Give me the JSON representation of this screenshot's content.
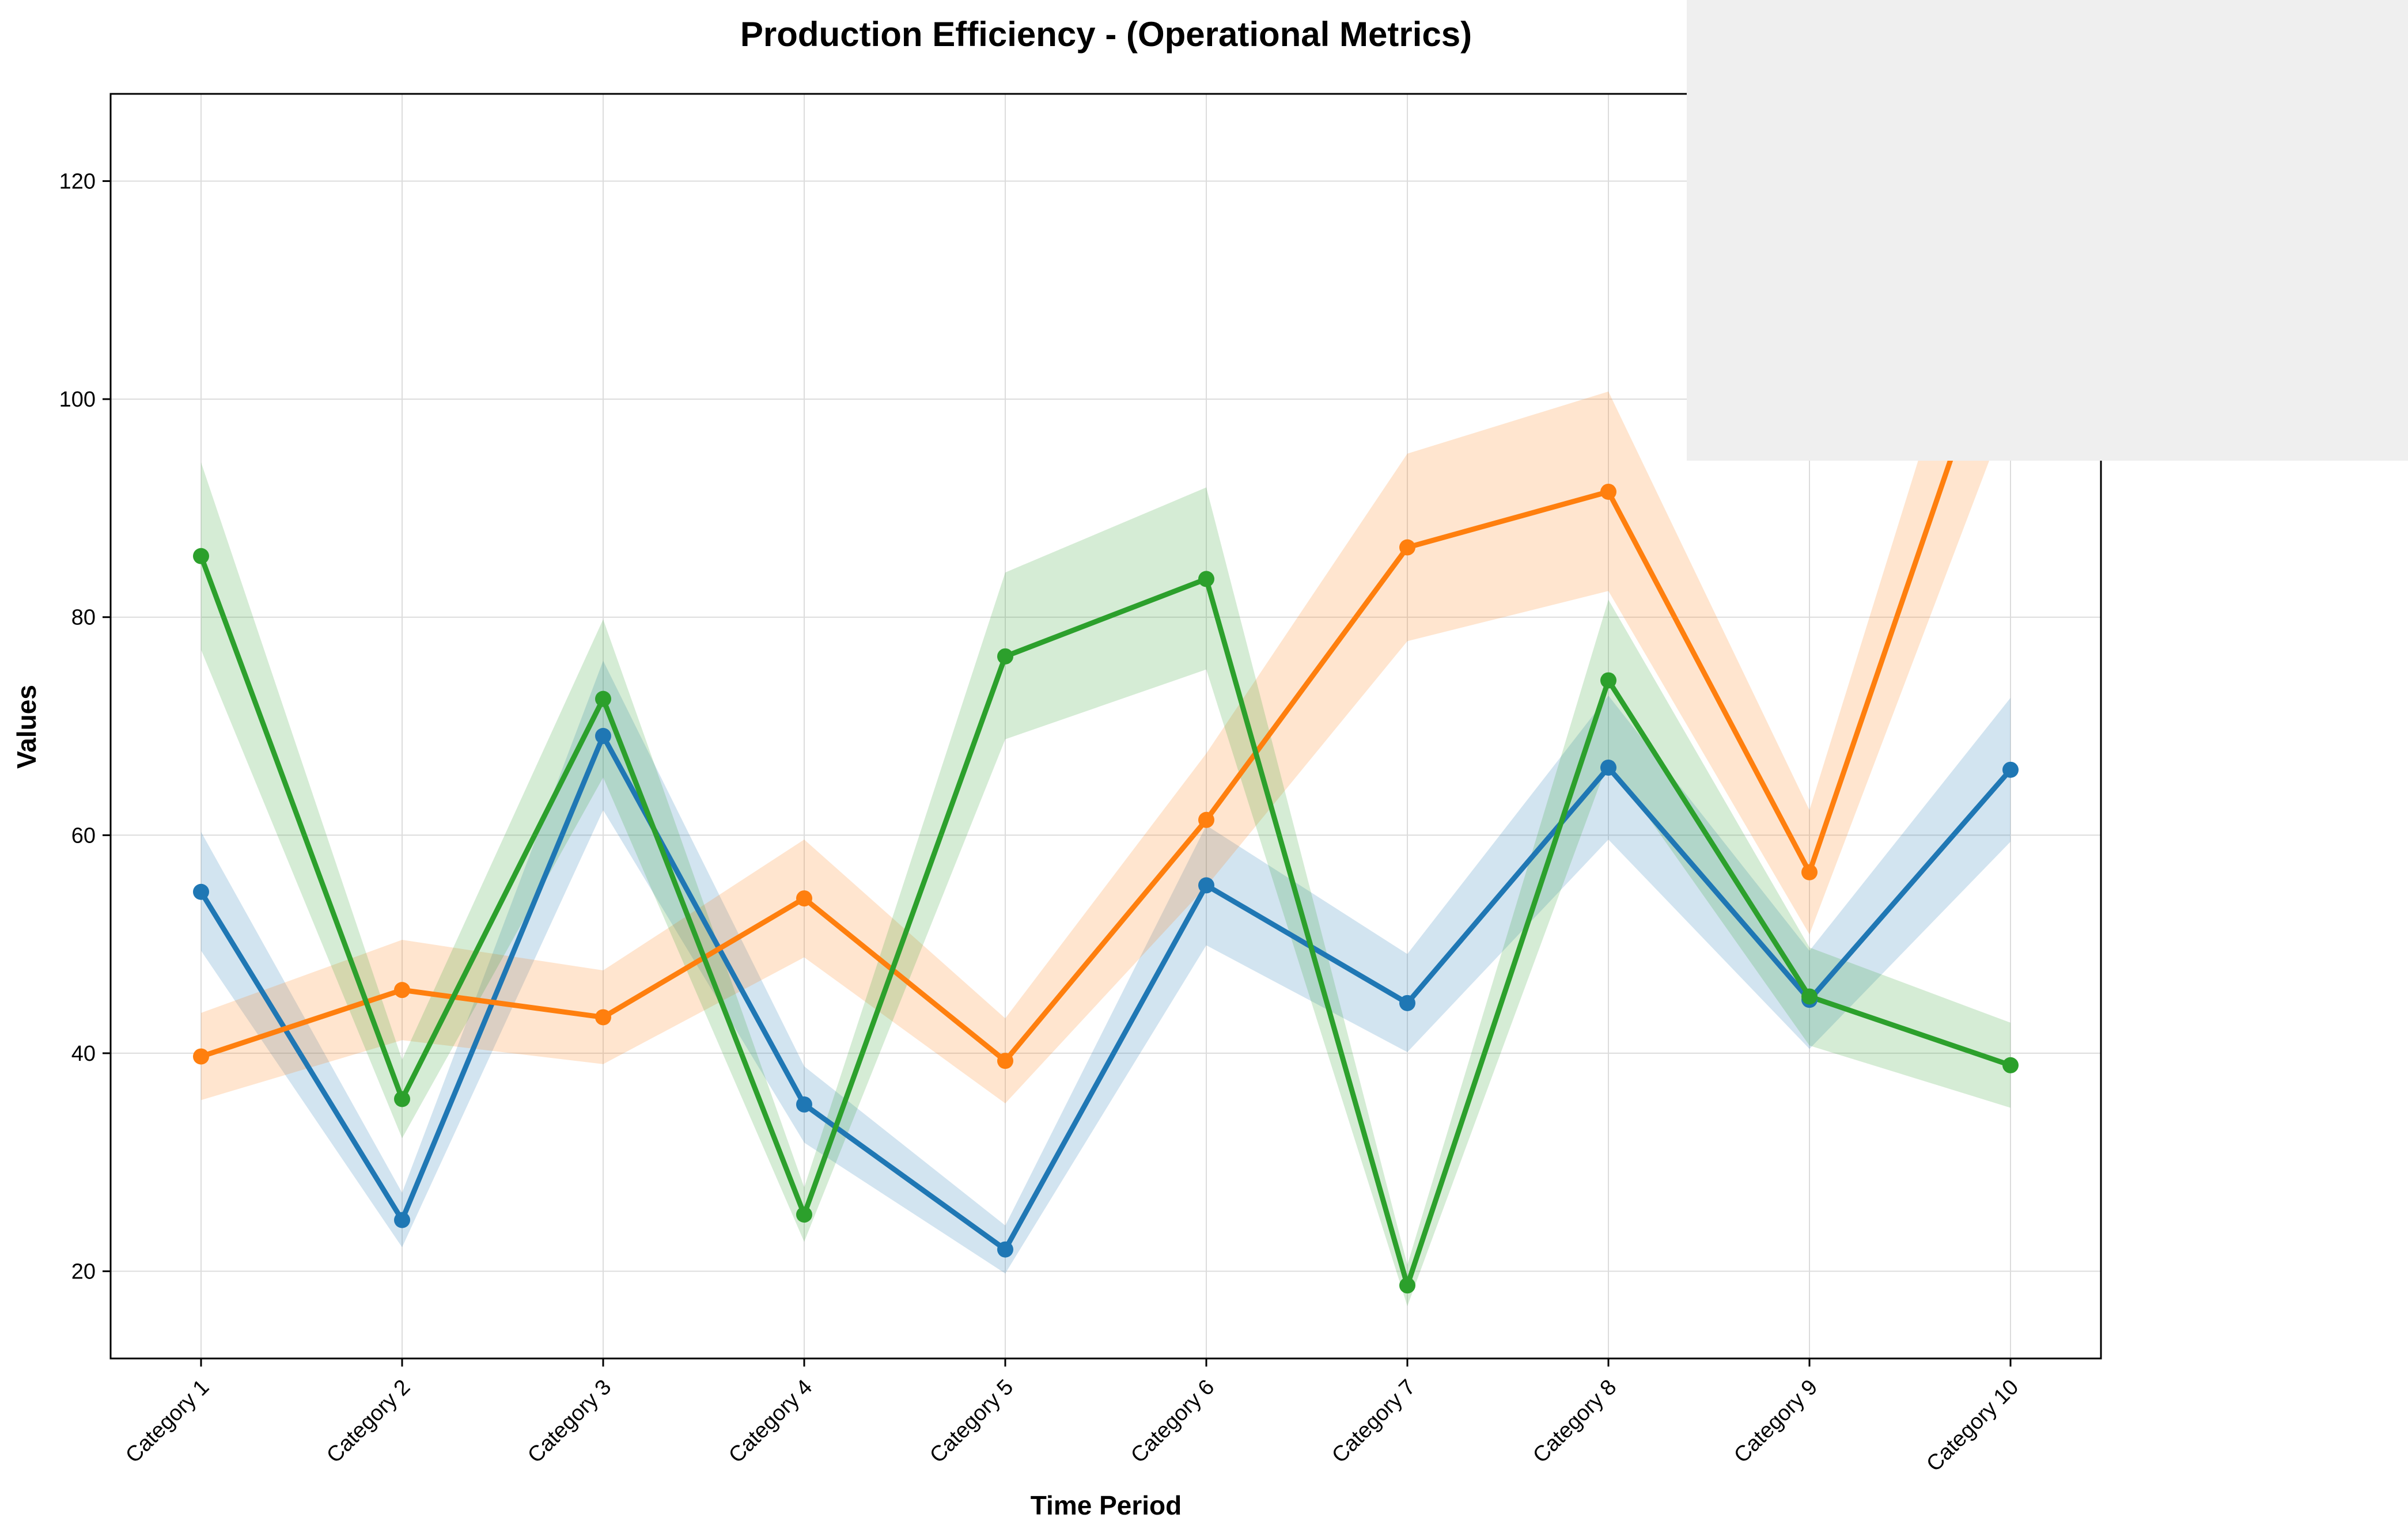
{
  "chart_data": {
    "type": "line",
    "title": "Production Efficiency - (Operational Metrics)",
    "xlabel": "Time Period",
    "ylabel": "Values",
    "ylim": [
      12,
      128
    ],
    "yticks": [
      20,
      40,
      60,
      80,
      100,
      120
    ],
    "grid": true,
    "legend": "overlay box at top-right (entries not visible)",
    "categories": [
      "Category 1",
      "Category 2",
      "Category 3",
      "Category 4",
      "Category 5",
      "Category 6",
      "Category 7",
      "Category 8",
      "Category 9",
      "Category 10"
    ],
    "series": [
      {
        "color": "#1f77b4",
        "values": [
          54.8,
          24.7,
          69.1,
          35.3,
          22.0,
          55.4,
          44.6,
          66.2,
          44.9,
          66.0
        ],
        "band_low": [
          49.4,
          22.2,
          62.3,
          31.8,
          19.8,
          49.9,
          40.1,
          59.6,
          40.4,
          59.4
        ],
        "band_high": [
          60.3,
          27.2,
          76.0,
          38.8,
          24.2,
          60.9,
          49.1,
          72.8,
          49.4,
          72.6
        ]
      },
      {
        "color": "#ff7f0e",
        "values": [
          39.7,
          45.8,
          43.3,
          54.2,
          39.3,
          61.4,
          86.4,
          91.5,
          56.6,
          110.5
        ],
        "band_low": [
          35.7,
          41.2,
          39.0,
          48.8,
          35.4,
          55.3,
          77.8,
          82.4,
          50.9,
          99.5
        ],
        "band_high": [
          43.7,
          50.4,
          47.6,
          59.6,
          43.2,
          67.5,
          95.0,
          100.7,
          62.3,
          121.6
        ]
      },
      {
        "color": "#2ca02c",
        "values": [
          85.6,
          35.8,
          72.5,
          25.2,
          76.4,
          83.5,
          18.7,
          74.2,
          45.2,
          38.9
        ],
        "band_low": [
          77.0,
          32.2,
          65.3,
          22.7,
          68.8,
          75.2,
          16.8,
          66.8,
          40.7,
          35.0
        ],
        "band_high": [
          94.2,
          39.4,
          79.8,
          27.7,
          84.1,
          91.9,
          20.6,
          81.6,
          49.7,
          42.8
        ]
      }
    ]
  }
}
